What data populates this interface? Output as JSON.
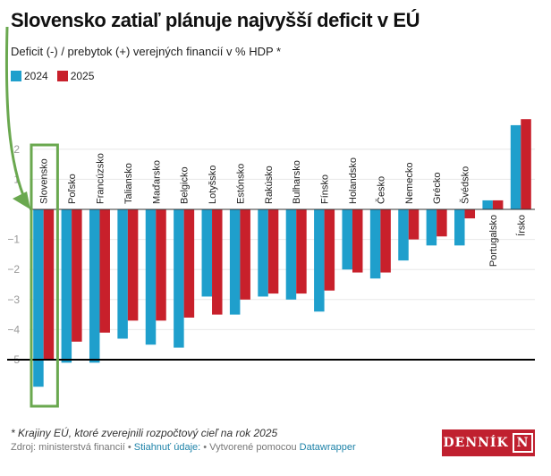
{
  "header": {
    "title": "Slovensko zatiaľ plánuje najvyšší deficit v EÚ",
    "subtitle": "Deficit (-) / prebytok (+) verejných financií v % HDP *"
  },
  "footer": {
    "note": "* Krajiny EÚ, ktoré zverejnili rozpočtový cieľ na rok 2025",
    "source_prefix": "Zdroj: ministerstvá financií",
    "separator": " • ",
    "download_link": "Stiahnuť údaje:",
    "created_prefix": "Vytvorené pomocou",
    "datawrapper_link": "Datawrapper",
    "logo_text": "DENNÍK",
    "logo_mark": "N"
  },
  "colors": {
    "series_2024": "#1f9fcc",
    "series_2025": "#c8202b",
    "highlight": "#6aa84f",
    "reference_line": "#000000"
  },
  "chart_data": {
    "type": "bar",
    "title": "Slovensko zatiaľ plánuje najvyšší deficit v EÚ",
    "subtitle": "Deficit (-) / prebytok (+) verejných financií v % HDP *",
    "xlabel": "",
    "ylabel": "",
    "ylim": [
      -6,
      3.2
    ],
    "yticks": [
      2,
      1,
      0,
      -1,
      -2,
      -3,
      -4,
      -5
    ],
    "ytick_labels": [
      "2",
      "1",
      "",
      "−1",
      "−2",
      "−3",
      "−4",
      "−5"
    ],
    "grid": true,
    "legend_position": "top-left",
    "reference_line": -5,
    "highlighted_category": "Slovensko",
    "categories": [
      "Slovensko",
      "Poľsko",
      "Francúzsko",
      "Taliansko",
      "Maďarsko",
      "Belgicko",
      "Lotyšsko",
      "Estónsko",
      "Rakúsko",
      "Bulharsko",
      "Fínsko",
      "Holandsko",
      "Česko",
      "Nemecko",
      "Grécko",
      "Švédsko",
      "Portugalsko",
      "Írsko"
    ],
    "series": [
      {
        "name": "2024",
        "values": [
          -5.9,
          -5.1,
          -5.1,
          -4.3,
          -4.5,
          -4.6,
          -2.9,
          -3.5,
          -2.9,
          -3.0,
          -3.4,
          -2.0,
          -2.3,
          -1.7,
          -1.2,
          -1.2,
          0.3,
          2.8
        ]
      },
      {
        "name": "2025",
        "values": [
          -5.0,
          -4.4,
          -4.1,
          -3.7,
          -3.7,
          -3.6,
          -3.5,
          -3.0,
          -2.8,
          -2.8,
          -2.7,
          -2.1,
          -2.1,
          -1.0,
          -0.9,
          -0.3,
          0.3,
          3.0
        ]
      }
    ]
  }
}
